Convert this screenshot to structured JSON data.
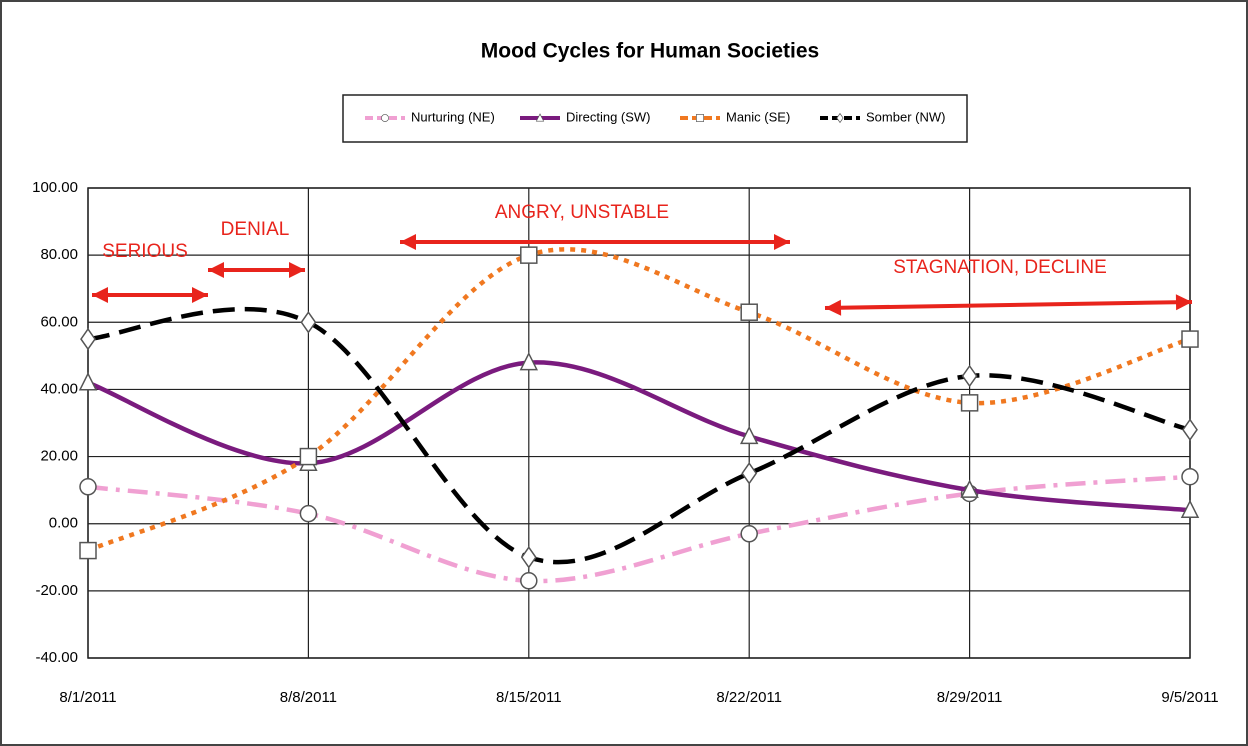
{
  "chart_data": {
    "type": "line",
    "title": "Mood Cycles for Human Societies",
    "categories": [
      "8/1/2011",
      "8/8/2011",
      "8/15/2011",
      "8/22/2011",
      "8/29/2011",
      "9/5/2011"
    ],
    "series": [
      {
        "name": "Nurturing (NE)",
        "color": "#f0a0d2",
        "dash": "dashdot",
        "marker": "circle",
        "values": [
          11,
          3,
          -17,
          -3,
          9,
          14
        ]
      },
      {
        "name": "Directing (SW)",
        "color": "#7a1b7e",
        "dash": "solid",
        "marker": "triangle",
        "values": [
          42,
          18,
          48,
          26,
          10,
          4
        ]
      },
      {
        "name": "Manic (SE)",
        "color": "#f07820",
        "dash": "dotted",
        "marker": "square",
        "values": [
          -8,
          20,
          80,
          63,
          36,
          55
        ]
      },
      {
        "name": "Somber (NW)",
        "color": "#000000",
        "dash": "dashed",
        "marker": "diamond",
        "values": [
          55,
          60,
          -10,
          15,
          44,
          28
        ]
      }
    ],
    "ylim": [
      -40,
      100
    ],
    "yticks": [
      {
        "value": -40,
        "label": "-40.00"
      },
      {
        "value": -20,
        "label": "-20.00"
      },
      {
        "value": 0,
        "label": "0.00"
      },
      {
        "value": 20,
        "label": "20.00"
      },
      {
        "value": 40,
        "label": "40.00"
      },
      {
        "value": 60,
        "label": "60.00"
      },
      {
        "value": 80,
        "label": "80.00"
      },
      {
        "value": 100,
        "label": "100.00"
      }
    ],
    "grid": true,
    "legend": "top",
    "annotations": [
      "SERIOUS",
      "DENIAL",
      "ANGRY, UNSTABLE",
      "STAGNATION, DECLINE"
    ]
  }
}
